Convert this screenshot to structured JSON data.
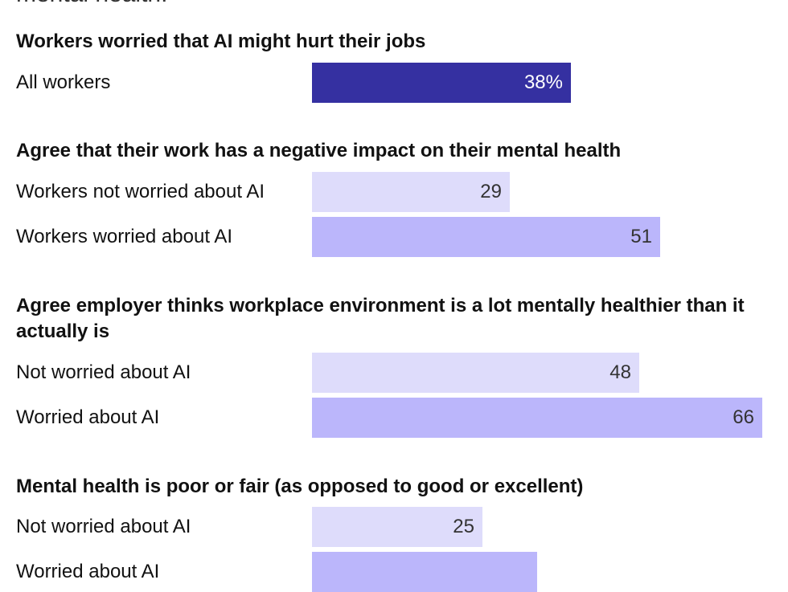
{
  "intro_tail": "mental health.",
  "colors": {
    "highlight_bar": "#3530a1",
    "light_bar": "#dedcfb",
    "medium_bar": "#bbb6fb",
    "highlight_text": "#ffffff",
    "value_text": "#333333"
  },
  "chart_data": {
    "type": "bar",
    "orientation": "horizontal",
    "scale_max": 66,
    "groups": [
      {
        "title": "Workers worried that AI might hurt their jobs",
        "rows": [
          {
            "label": "All workers",
            "value": 38,
            "display": "38%",
            "style": "highlight"
          }
        ]
      },
      {
        "title": "Agree that their work has a negative impact on their mental health",
        "rows": [
          {
            "label": "Workers not worried about AI",
            "value": 29,
            "display": "29",
            "style": "light"
          },
          {
            "label": "Workers worried about AI",
            "value": 51,
            "display": "51",
            "style": "medium"
          }
        ]
      },
      {
        "title": "Agree employer thinks workplace environment is a lot mentally healthier than it actually is",
        "rows": [
          {
            "label": "Not worried about AI",
            "value": 48,
            "display": "48",
            "style": "light"
          },
          {
            "label": "Worried about AI",
            "value": 66,
            "display": "66",
            "style": "medium"
          }
        ]
      },
      {
        "title": "Mental health is poor or fair (as opposed to good or excellent)",
        "rows": [
          {
            "label": "Not worried about AI",
            "value": 25,
            "display": "25",
            "style": "light"
          },
          {
            "label": "Worried about AI",
            "value": 33,
            "display": "",
            "style": "medium"
          }
        ]
      }
    ]
  }
}
